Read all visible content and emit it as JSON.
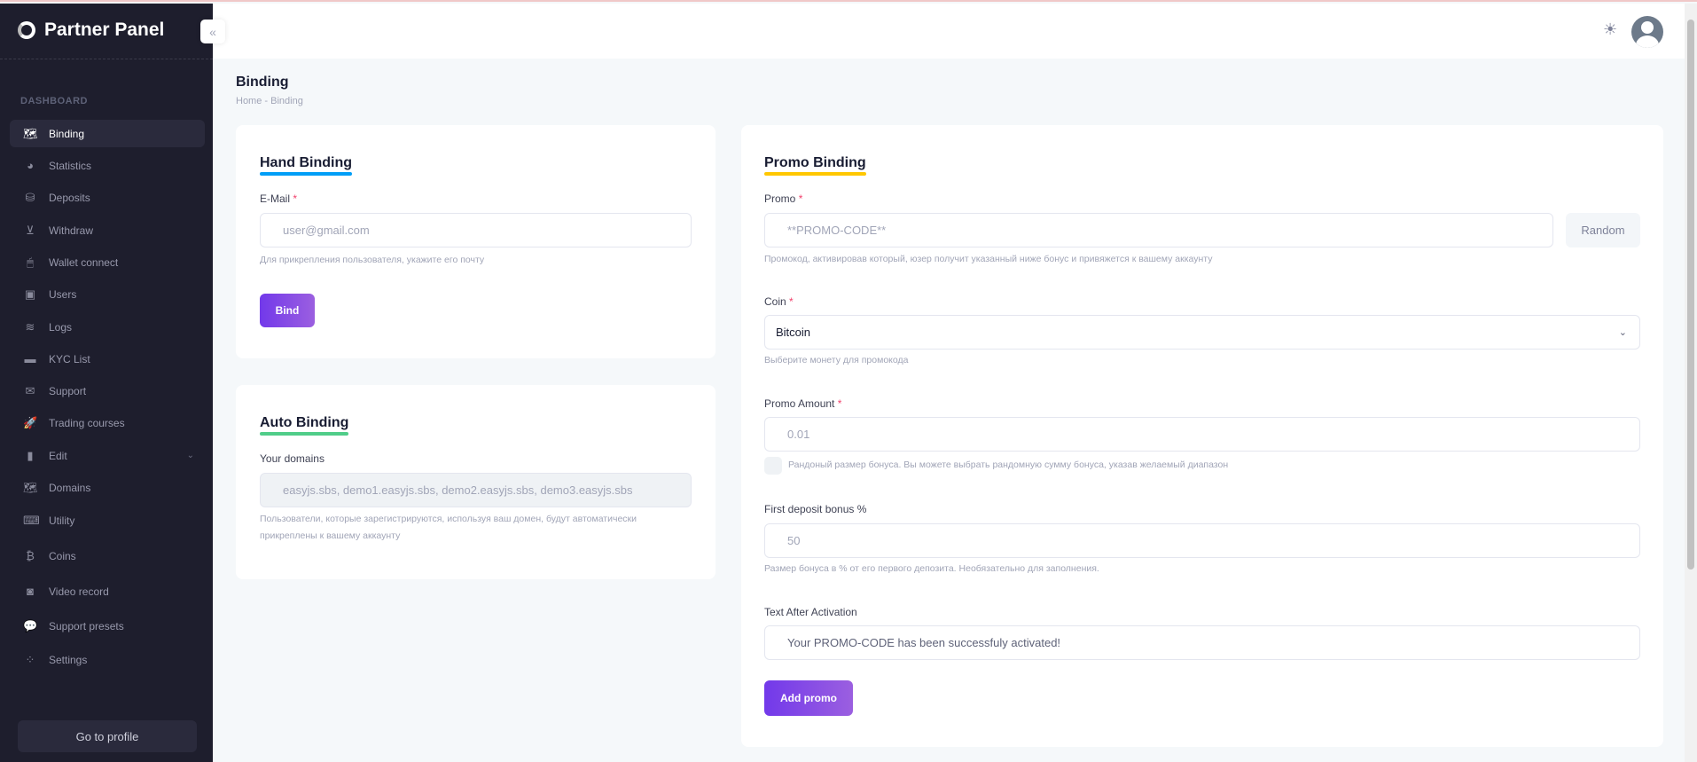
{
  "app": {
    "title": "Partner Panel"
  },
  "sidebar": {
    "section": "DASHBOARD",
    "items": [
      {
        "label": "Binding",
        "icon": "map-icon",
        "glyph": "🗺"
      },
      {
        "label": "Statistics",
        "icon": "pie-chart-icon",
        "glyph": "◕"
      },
      {
        "label": "Deposits",
        "icon": "deposit-icon",
        "glyph": "⛁"
      },
      {
        "label": "Withdraw",
        "icon": "basket-icon",
        "glyph": "⊻"
      },
      {
        "label": "Wallet connect",
        "icon": "mouse-icon",
        "glyph": "🖱"
      },
      {
        "label": "Users",
        "icon": "contact-book-icon",
        "glyph": "▣"
      },
      {
        "label": "Logs",
        "icon": "layers-icon",
        "glyph": "≋"
      },
      {
        "label": "KYC List",
        "icon": "credit-card-icon",
        "glyph": "▬"
      },
      {
        "label": "Support",
        "icon": "envelope-icon",
        "glyph": "✉"
      },
      {
        "label": "Trading courses",
        "icon": "rocket-icon",
        "glyph": "🚀"
      },
      {
        "label": "Edit",
        "icon": "file-icon",
        "glyph": "▮"
      },
      {
        "label": "Domains",
        "icon": "map-icon",
        "glyph": "🗺"
      },
      {
        "label": "Utility",
        "icon": "terminal-icon",
        "glyph": "⌨"
      },
      {
        "label": "Coins",
        "icon": "bitcoin-icon",
        "glyph": "₿"
      },
      {
        "label": "Video record",
        "icon": "camera-icon",
        "glyph": "◙"
      },
      {
        "label": "Support presets",
        "icon": "chat-icon",
        "glyph": "💬"
      },
      {
        "label": "Settings",
        "icon": "dots-icon",
        "glyph": "⁘"
      }
    ],
    "profile_button": "Go to profile",
    "collapse_glyph": "«"
  },
  "page": {
    "title": "Binding",
    "breadcrumb": [
      "Home",
      "Binding"
    ],
    "crumb_sep": "-"
  },
  "hand": {
    "title": "Hand Binding",
    "underline": "#009ef7",
    "email_label": "E-Mail",
    "required": "*",
    "email_placeholder": "user@gmail.com",
    "help": "Для прикрепления пользователя, укажите его почту",
    "bind": "Bind"
  },
  "auto": {
    "title": "Auto Binding",
    "underline": "#50cd89",
    "domains_label": "Your domains",
    "domains_value": "easyjs.sbs, demo1.easyjs.sbs, demo2.easyjs.sbs, demo3.easyjs.sbs",
    "help": "Пользователи, которые зарегистрируются, используя ваш домен, будут автоматически прикреплены к вашему аккаунту"
  },
  "promo": {
    "title": "Promo Binding",
    "underline": "#ffc700",
    "promo_label": "Promo",
    "promo_placeholder": "**PROMO-CODE**",
    "random": "Random",
    "promo_help": "Промокод, активировав который, юзер получит указанный ниже бонус и привяжется к вашему аккаунту",
    "coin_label": "Coin",
    "coin_value": "Bitcoin",
    "coin_help": "Выберите монету для промокода",
    "amount_label": "Promo Amount",
    "amount_placeholder": "0.01",
    "random_amount_label": "Рандоный размер бонуса. Вы можете выбрать рандомную сумму бонуса, указав желаемый диапазон",
    "random_amount_checked": false,
    "deposit_label": "First deposit bonus %",
    "deposit_placeholder": "50",
    "deposit_help": "Размер бонуса в % от его первого депозита. Необязательно для заполнения.",
    "text_label": "Text After Activation",
    "text_value": "Your PROMO-CODE has been successfuly activated!",
    "add": "Add promo"
  },
  "header": {
    "theme_icon": "☀"
  }
}
